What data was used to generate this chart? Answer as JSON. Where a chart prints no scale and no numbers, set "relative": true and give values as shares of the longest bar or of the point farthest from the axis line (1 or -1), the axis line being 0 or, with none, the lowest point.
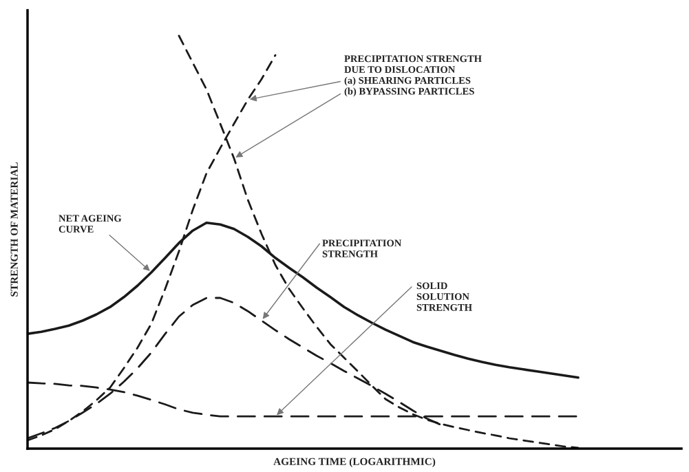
{
  "chart_data": {
    "type": "line",
    "relative": true,
    "xlabel": "AGEING TIME (LOGARITHMIC)",
    "ylabel": "STRENGTH OF MATERIAL",
    "grid": false,
    "marker": "none",
    "categories": [
      null,
      null,
      null,
      null,
      null,
      null,
      null,
      null,
      null,
      null,
      null,
      null,
      null,
      null,
      null,
      null,
      null,
      null,
      null,
      null,
      null,
      null,
      null,
      null,
      null,
      null,
      null,
      null,
      null,
      null,
      null,
      null,
      null,
      null,
      null,
      null,
      null,
      null,
      null,
      null,
      null
    ],
    "series": [
      {
        "color": "#1a1a1a",
        "line_style": "solid",
        "values": [
          0.278,
          0.283,
          0.29,
          0.298,
          0.31,
          0.325,
          0.343,
          0.367,
          0.395,
          0.427,
          0.462,
          0.498,
          0.528,
          0.547,
          0.543,
          0.532,
          0.513,
          0.49,
          0.462,
          0.438,
          0.415,
          0.39,
          0.367,
          0.343,
          0.323,
          0.305,
          0.288,
          0.273,
          0.258,
          0.247,
          0.237,
          0.227,
          0.218,
          0.21,
          0.203,
          0.197,
          0.192,
          0.187,
          0.182,
          0.177,
          0.172
        ]
      },
      {
        "color": "#1a1a1a",
        "line_style": "dashed",
        "values": [
          0.025,
          0.037,
          0.05,
          0.067,
          0.087,
          0.108,
          0.133,
          0.162,
          0.195,
          0.233,
          0.278,
          0.32,
          0.348,
          0.365,
          0.365,
          0.353,
          0.333,
          0.31,
          0.287,
          0.265,
          0.245,
          0.225,
          0.207,
          0.188,
          0.17,
          0.152,
          0.133,
          0.113,
          0.092,
          0.073,
          0.058,
          null,
          null,
          null,
          null,
          null,
          null,
          null,
          null,
          null,
          null
        ]
      },
      {
        "color": "#1a1a1a",
        "line_style": "dashed",
        "values": [
          null,
          null,
          null,
          null,
          null,
          null,
          null,
          null,
          null,
          null,
          null,
          1.0,
          0.935,
          0.87,
          0.787,
          0.703,
          0.603,
          0.52,
          0.445,
          0.387,
          0.34,
          0.295,
          0.253,
          0.22,
          0.187,
          0.153,
          0.12,
          0.1,
          0.083,
          0.07,
          0.06,
          0.052,
          0.045,
          0.038,
          0.032,
          0.025,
          0.02,
          0.015,
          0.01,
          0.005,
          0.002
        ]
      },
      {
        "color": "#1a1a1a",
        "line_style": "dashed",
        "values": [
          0.02,
          0.032,
          0.047,
          0.067,
          0.09,
          0.117,
          0.148,
          0.195,
          0.245,
          0.303,
          0.387,
          0.478,
          0.578,
          0.667,
          0.728,
          0.787,
          0.845,
          0.895,
          0.953,
          null,
          null,
          null,
          null,
          null,
          null,
          null,
          null,
          null,
          null,
          null,
          null,
          null,
          null,
          null,
          null,
          null,
          null,
          null,
          null,
          null,
          null
        ]
      },
      {
        "color": "#1a1a1a",
        "line_style": "dashed",
        "values": [
          0.16,
          0.158,
          0.157,
          0.153,
          0.152,
          0.148,
          0.143,
          0.137,
          0.128,
          0.118,
          0.107,
          0.095,
          0.087,
          0.082,
          0.078,
          0.078,
          0.078,
          0.078,
          0.078,
          0.078,
          0.078,
          0.078,
          0.078,
          0.078,
          0.078,
          0.078,
          0.078,
          0.078,
          0.078,
          0.078,
          0.078,
          0.078,
          0.078,
          0.078,
          0.078,
          0.078,
          0.078,
          0.078,
          0.078,
          0.078,
          0.078
        ]
      }
    ],
    "annotations": [
      "PRECIPITATION STRENGTH\nDUE TO DISLOCATION\n(a) SHEARING PARTICLES\n(b) BYPASSING PARTICLES",
      "NET AGEING\nCURVE",
      "PRECIPITATION\nSTRENGTH",
      "SOLID\nSOLUTION\nSTRENGTH"
    ]
  }
}
